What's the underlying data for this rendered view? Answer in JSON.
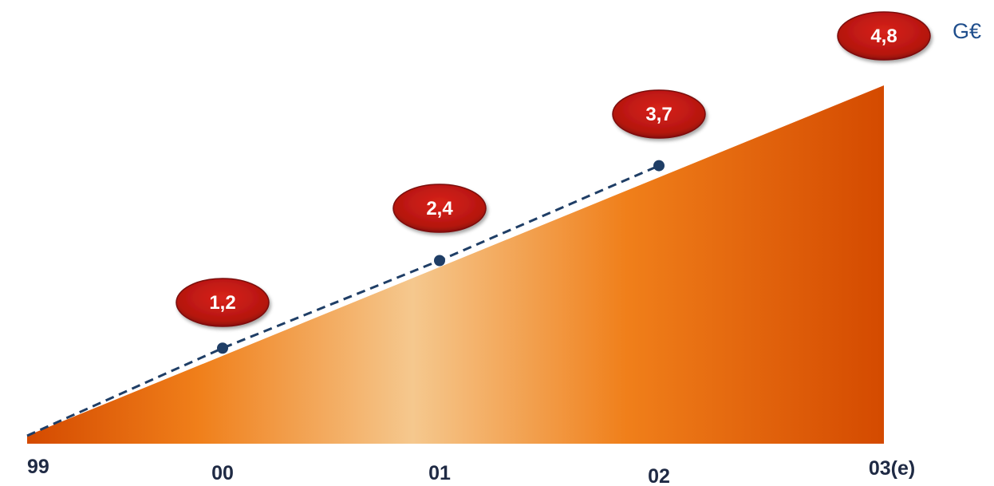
{
  "chart_data": {
    "type": "area",
    "categories": [
      "99",
      "00",
      "01",
      "02",
      "03(e)"
    ],
    "values": [
      0,
      1.2,
      2.4,
      3.7,
      4.8
    ],
    "data_labels": [
      "",
      "1,2",
      "2,4",
      "3,7",
      "4,8"
    ],
    "unit": "G€",
    "ylim": [
      0,
      4.8
    ],
    "grid": false,
    "legend": "none"
  },
  "colors": {
    "area_dark": "#d44a00",
    "area_mid": "#f07f1a",
    "area_light": "#f5c88e",
    "badge_fill": "#c01a14",
    "badge_edge": "#7a0d09",
    "line": "#1f3e66",
    "text": "#1f2a44",
    "unit_text": "#1f4e8c"
  }
}
